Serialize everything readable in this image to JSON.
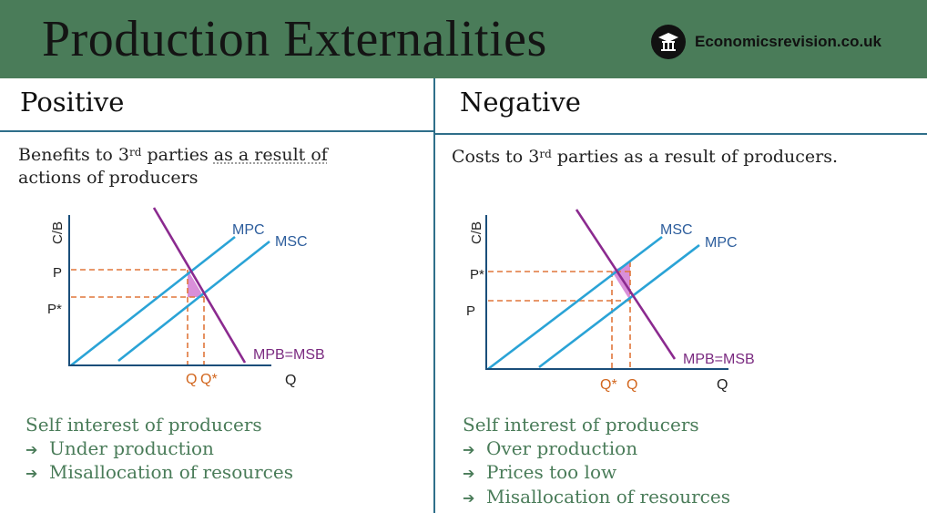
{
  "header": {
    "title": "Production Externalities",
    "brand": "Economicsrevision.co.uk",
    "logo_icon": "graduation-cap-icon"
  },
  "positive": {
    "heading": "Positive",
    "desc_line1_pre": "Benefits to 3",
    "desc_sup": "rd",
    "desc_line1_mid": " parties ",
    "desc_line1_dotted": "as a result of",
    "desc_line2": "actions of producers",
    "graph": {
      "y_axis": "C/B",
      "x_axis": "Q",
      "supply_private": "MPC",
      "supply_social": "MSC",
      "demand": "MPB=MSB",
      "price_upper": "P",
      "price_lower": "P*",
      "q_left": "Q",
      "q_right": "Q*"
    },
    "bullets": [
      "Self interest of producers",
      "Under production",
      "Misallocation of resources"
    ]
  },
  "negative": {
    "heading": "Negative",
    "desc_pre": "Costs to 3",
    "desc_sup": "rd",
    "desc_post": " parties as a result of producers.",
    "graph": {
      "y_axis": "C/B",
      "x_axis": "Q",
      "supply_social": "MSC",
      "supply_private": "MPC",
      "demand": "MPB=MSB",
      "price_upper": "P*",
      "price_lower": "P",
      "q_left": "Q*",
      "q_right": "Q"
    },
    "bullets": [
      "Self interest of producers",
      "Over production",
      "Prices too low",
      "Misallocation of resources"
    ]
  },
  "colors": {
    "header_bg": "#4a7c59",
    "supply_line": "#2aa3d6",
    "demand_line": "#8b2a8f",
    "guide_dash": "#e0763a",
    "welfare_triangle": "#d98fd9",
    "label_blue": "#2c5d9c",
    "label_orange": "#d2671f",
    "bullet_text": "#4a7c59"
  }
}
